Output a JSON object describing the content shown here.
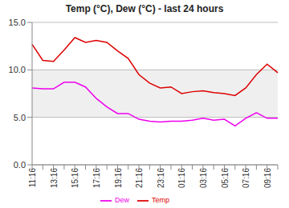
{
  "chart_data": {
    "type": "line",
    "title": "Temp (°C), Dew (°C) - last 24 hours",
    "categories": [
      "11:16",
      null,
      "13:16",
      null,
      "15:16",
      null,
      "17:16",
      null,
      "19:16",
      null,
      "21:16",
      null,
      "23:16",
      null,
      "01:16",
      null,
      "03:16",
      null,
      "05:16",
      null,
      "07:16",
      null,
      "09:16",
      null
    ],
    "series": [
      {
        "name": "Temp",
        "color": "#dd0000",
        "values": [
          12.7,
          11.0,
          10.9,
          12.1,
          13.4,
          12.9,
          13.1,
          12.9,
          12.0,
          11.2,
          9.5,
          8.6,
          8.1,
          8.2,
          7.5,
          7.7,
          7.8,
          7.6,
          7.5,
          7.3,
          8.1,
          9.5,
          10.6,
          9.7
        ]
      },
      {
        "name": "Dew",
        "color": "#ee00ee",
        "values": [
          8.1,
          8.0,
          8.0,
          8.7,
          8.7,
          8.2,
          7.0,
          6.1,
          5.4,
          5.4,
          4.8,
          4.6,
          4.5,
          4.6,
          4.6,
          4.7,
          4.9,
          4.7,
          4.8,
          4.1,
          4.9,
          5.5,
          4.9,
          4.9
        ]
      }
    ],
    "ylim": [
      0,
      15
    ],
    "yticks": [
      {
        "value": 0,
        "label": "0.0"
      },
      {
        "value": 5,
        "label": "5.0"
      },
      {
        "value": 10,
        "label": "10.0"
      },
      {
        "value": 15,
        "label": "15.0"
      }
    ],
    "grid": true,
    "legend": "bottom"
  }
}
